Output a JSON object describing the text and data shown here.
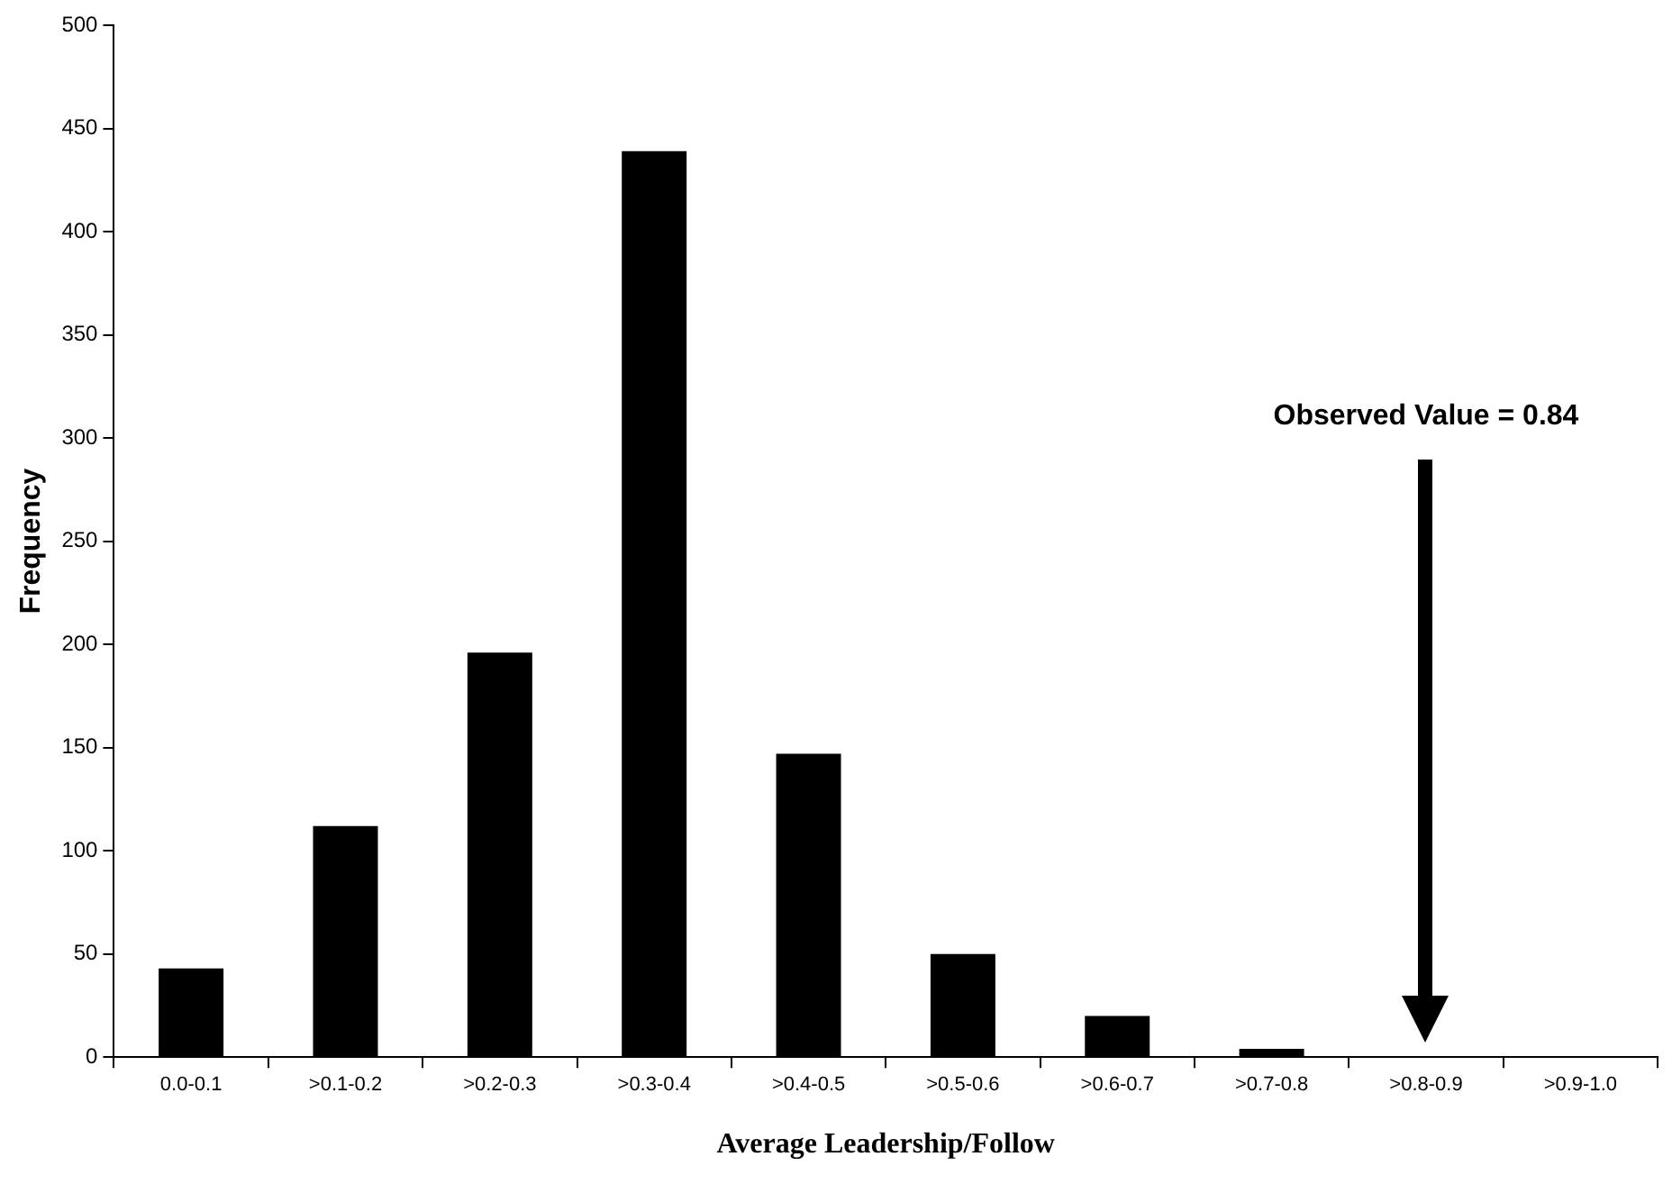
{
  "chart_data": {
    "type": "bar",
    "xlabel": "Average Leadership/Follow",
    "ylabel": "Frequency",
    "categories": [
      "0.0-0.1",
      ">0.1-0.2",
      ">0.2-0.3",
      ">0.3-0.4",
      ">0.4-0.5",
      ">0.5-0.6",
      ">0.6-0.7",
      ">0.7-0.8",
      ">0.8-0.9",
      ">0.9-1.0"
    ],
    "values": [
      43,
      112,
      196,
      439,
      147,
      50,
      20,
      4,
      0,
      0
    ],
    "color": "#000000",
    "ylim": [
      0,
      500
    ],
    "yticks": [
      0,
      50,
      100,
      150,
      200,
      250,
      300,
      350,
      400,
      450,
      500
    ],
    "grid": false,
    "legend": false,
    "annotations": [
      "Observed Value = 0.84"
    ]
  }
}
